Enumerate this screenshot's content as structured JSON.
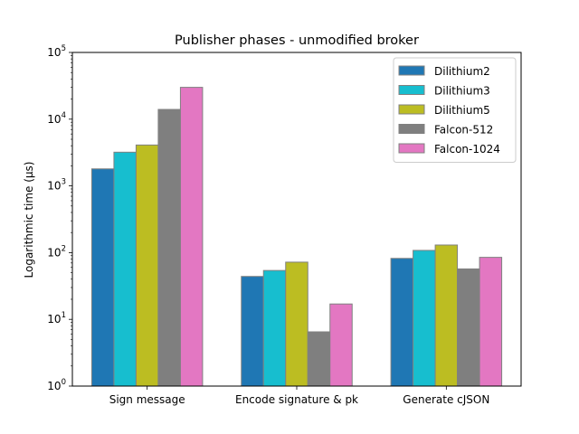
{
  "chart_data": {
    "type": "bar",
    "title": "Publisher phases - unmodified broker",
    "xlabel": "",
    "ylabel": "Logarithmic time (μs)",
    "yscale": "log",
    "ylim": [
      1,
      100000
    ],
    "y_ticks": [
      {
        "value": 1,
        "base": "10",
        "exp": "0"
      },
      {
        "value": 10,
        "base": "10",
        "exp": "1"
      },
      {
        "value": 100,
        "base": "10",
        "exp": "2"
      },
      {
        "value": 1000,
        "base": "10",
        "exp": "3"
      },
      {
        "value": 10000,
        "base": "10",
        "exp": "4"
      },
      {
        "value": 100000,
        "base": "10",
        "exp": "5"
      }
    ],
    "categories": [
      "Sign message",
      "Encode signature & pk",
      "Generate cJSON"
    ],
    "series": [
      {
        "name": "Dilithium2",
        "color": "#1f77b4",
        "values": [
          1800,
          44,
          82
        ]
      },
      {
        "name": "Dilithium3",
        "color": "#17becf",
        "values": [
          3200,
          54,
          108
        ]
      },
      {
        "name": "Dilithium5",
        "color": "#bcbd22",
        "values": [
          4100,
          72,
          130
        ]
      },
      {
        "name": "Falcon-512",
        "color": "#7f7f7f",
        "values": [
          14000,
          6.5,
          57
        ]
      },
      {
        "name": "Falcon-1024",
        "color": "#e377c2",
        "values": [
          30000,
          17,
          85
        ]
      }
    ],
    "grid": false,
    "legend_position": "top-right",
    "bar_edge_color": "#808080"
  }
}
